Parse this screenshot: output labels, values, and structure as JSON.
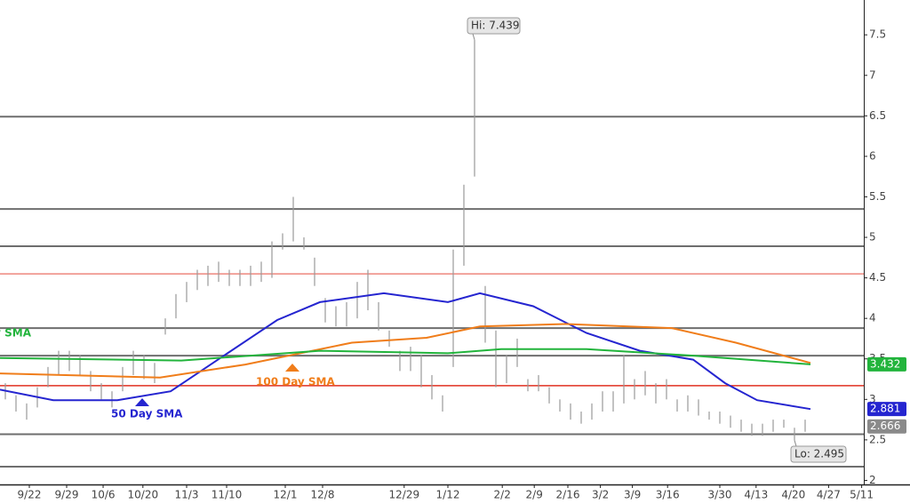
{
  "chart_data": {
    "type": "ohlc",
    "xlim": [
      0,
      81
    ],
    "ylim": [
      1.95,
      7.93
    ],
    "yticks": [
      2,
      2.5,
      3,
      3.5,
      4,
      4.5,
      5,
      5.5,
      6,
      6.5,
      7,
      7.5
    ],
    "xticks": [
      {
        "value": 2.75,
        "label": "9/22"
      },
      {
        "value": 6.25,
        "label": "9/29"
      },
      {
        "value": 9.67,
        "label": "10/6"
      },
      {
        "value": 13.4,
        "label": "10/20"
      },
      {
        "value": 17.5,
        "label": "11/3"
      },
      {
        "value": 21.25,
        "label": "11/10"
      },
      {
        "value": 26.75,
        "label": "12/1"
      },
      {
        "value": 30.25,
        "label": "12/8"
      },
      {
        "value": 37.9,
        "label": "12/29"
      },
      {
        "value": 42,
        "label": "1/12"
      },
      {
        "value": 47.1,
        "label": "2/2"
      },
      {
        "value": 50.1,
        "label": "2/9"
      },
      {
        "value": 53.25,
        "label": "2/16"
      },
      {
        "value": 56.3,
        "label": "3/2"
      },
      {
        "value": 59.3,
        "label": "3/9"
      },
      {
        "value": 62.6,
        "label": "3/16"
      },
      {
        "value": 67.5,
        "label": "3/30"
      },
      {
        "value": 70.9,
        "label": "4/13"
      },
      {
        "value": 74.4,
        "label": "4/20"
      },
      {
        "value": 77.7,
        "label": "4/27"
      },
      {
        "value": 80.8,
        "label": "5/11"
      }
    ],
    "bars": {
      "color": "#9a9a9a",
      "x": [
        0.5,
        1.5,
        2.5,
        3.5,
        4.5,
        5.5,
        6.5,
        7.5,
        8.5,
        9.5,
        10.5,
        11.5,
        12.5,
        13.5,
        14.5,
        15.5,
        16.5,
        17.5,
        18.5,
        19.5,
        20.5,
        21.5,
        22.5,
        23.5,
        24.5,
        25.5,
        26.5,
        27.5,
        28.5,
        29.5,
        30.5,
        31.5,
        32.5,
        33.5,
        34.5,
        35.5,
        36.5,
        37.5,
        38.5,
        39.5,
        40.5,
        41.5,
        42.5,
        43.5,
        44.5,
        45.5,
        46.5,
        47.5,
        48.5,
        49.5,
        50.5,
        51.5,
        52.5,
        53.5,
        54.5,
        55.5,
        56.5,
        57.5,
        58.5,
        59.5,
        60.5,
        61.5,
        62.5,
        63.5,
        64.5,
        65.5,
        66.5,
        67.5,
        68.5,
        69.5,
        70.5,
        71.5,
        72.5,
        73.5,
        74.5,
        75.5
      ],
      "high": [
        3.2,
        3.05,
        2.95,
        3.15,
        3.4,
        3.6,
        3.6,
        3.55,
        3.35,
        3.2,
        3.1,
        3.4,
        3.6,
        3.55,
        3.45,
        4.0,
        4.3,
        4.45,
        4.6,
        4.65,
        4.7,
        4.6,
        4.6,
        4.65,
        4.7,
        4.95,
        5.05,
        5.5,
        5.0,
        4.75,
        4.25,
        4.15,
        4.2,
        4.45,
        4.6,
        4.2,
        3.85,
        3.6,
        3.65,
        3.55,
        3.3,
        3.05,
        4.85,
        5.65,
        7.439,
        4.4,
        3.85,
        3.55,
        3.75,
        3.25,
        3.3,
        3.15,
        3.0,
        2.95,
        2.85,
        2.95,
        3.1,
        3.1,
        3.55,
        3.25,
        3.35,
        3.2,
        3.25,
        3.0,
        3.05,
        3.0,
        2.85,
        2.85,
        2.8,
        2.75,
        2.7,
        2.7,
        2.75,
        2.75,
        2.65,
        2.75
      ],
      "low": [
        3.0,
        2.85,
        2.75,
        2.9,
        3.15,
        3.3,
        3.35,
        3.3,
        3.1,
        3.0,
        2.9,
        3.1,
        3.3,
        3.25,
        3.2,
        3.8,
        4.0,
        4.2,
        4.35,
        4.4,
        4.45,
        4.4,
        4.4,
        4.4,
        4.45,
        4.5,
        4.85,
        4.95,
        4.85,
        4.4,
        3.95,
        3.9,
        3.9,
        4.0,
        4.1,
        3.85,
        3.65,
        3.35,
        3.35,
        3.15,
        3.0,
        2.85,
        3.4,
        4.65,
        5.75,
        3.7,
        3.15,
        3.2,
        3.4,
        3.1,
        3.1,
        2.95,
        2.85,
        2.75,
        2.7,
        2.75,
        2.85,
        2.85,
        2.95,
        3.0,
        3.05,
        2.95,
        3.0,
        2.85,
        2.85,
        2.8,
        2.75,
        2.7,
        2.65,
        2.6,
        2.55,
        2.55,
        2.6,
        2.65,
        2.495,
        2.6
      ]
    },
    "close": 2.666,
    "series": [
      {
        "name": "50 Day SMA",
        "color": "#2525d0",
        "x": [
          0,
          5,
          11,
          16,
          21,
          26,
          30,
          36,
          42,
          45,
          50,
          55,
          60,
          65,
          68,
          71,
          76
        ],
        "values": [
          3.12,
          2.99,
          2.99,
          3.1,
          3.54,
          3.98,
          4.2,
          4.31,
          4.2,
          4.31,
          4.15,
          3.82,
          3.6,
          3.49,
          3.2,
          2.99,
          2.881
        ]
      },
      {
        "name": "100  Day SMA",
        "color": "#f07d1a",
        "x": [
          0,
          15,
          23,
          33,
          40,
          45,
          53,
          63,
          69,
          76
        ],
        "values": [
          3.32,
          3.27,
          3.43,
          3.7,
          3.76,
          3.9,
          3.93,
          3.88,
          3.7,
          3.45
        ]
      },
      {
        "name": "y SMA",
        "color": "#22b43c",
        "x": [
          0,
          17,
          30,
          42,
          47,
          55,
          65,
          76
        ],
        "values": [
          3.51,
          3.48,
          3.6,
          3.57,
          3.62,
          3.62,
          3.54,
          3.432
        ]
      }
    ],
    "levels": {
      "color": "#6e6e6e",
      "values": [
        6.49,
        5.35,
        4.89,
        3.88,
        3.54,
        2.57,
        2.17
      ]
    },
    "red_levels": {
      "color": "#e03020",
      "values": [
        4.55,
        3.17
      ]
    },
    "annotations": {
      "hi": "Hi: 7.439",
      "lo": "Lo: 2.495"
    }
  }
}
